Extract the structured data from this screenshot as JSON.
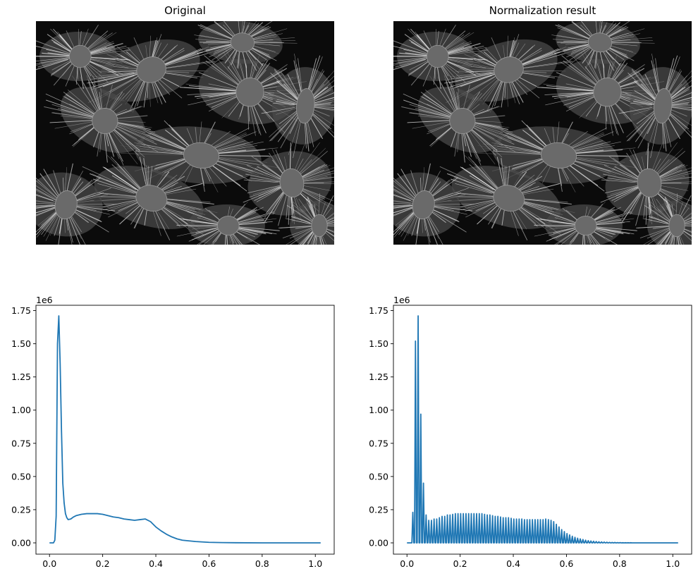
{
  "panels": {
    "original_title": "Original",
    "normalized_title": "Normalization result"
  },
  "images": {
    "original": {
      "kind": "grayscale fluorescence microscopy, cells with filament network"
    },
    "normalized": {
      "kind": "grayscale fluorescence microscopy, cells with filament network"
    }
  },
  "colors": {
    "line": "#1f77b4",
    "axes": "#000000",
    "image_background": "#0b0b0b"
  },
  "chart_data": [
    {
      "type": "line",
      "title": "",
      "xlabel": "",
      "ylabel": "",
      "y_offset_text": "1e6",
      "xlim": [
        -0.051,
        1.071
      ],
      "ylim": [
        -0.085,
        1.79
      ],
      "x_ticks": [
        0.0,
        0.2,
        0.4,
        0.6,
        0.8,
        1.0
      ],
      "x_tick_labels": [
        "0.0",
        "0.2",
        "0.4",
        "0.6",
        "0.8",
        "1.0"
      ],
      "y_ticks": [
        0.0,
        0.25,
        0.5,
        0.75,
        1.0,
        1.25,
        1.5,
        1.75
      ],
      "y_tick_labels": [
        "0.00",
        "0.25",
        "0.50",
        "0.75",
        "1.00",
        "1.25",
        "1.50",
        "1.75"
      ],
      "grid": false,
      "legend": "none",
      "series": [
        {
          "x": [
            0.0,
            0.015,
            0.02,
            0.025,
            0.03,
            0.035,
            0.04,
            0.045,
            0.05,
            0.055,
            0.06,
            0.065,
            0.07,
            0.08,
            0.09,
            0.1,
            0.12,
            0.14,
            0.16,
            0.18,
            0.2,
            0.22,
            0.24,
            0.26,
            0.28,
            0.3,
            0.32,
            0.34,
            0.36,
            0.38,
            0.4,
            0.42,
            0.44,
            0.46,
            0.48,
            0.5,
            0.55,
            0.6,
            0.65,
            0.7,
            0.8,
            0.9,
            1.0,
            1.02
          ],
          "y": [
            0.0,
            0.0,
            0.02,
            0.2,
            1.5,
            1.71,
            1.35,
            0.85,
            0.45,
            0.3,
            0.22,
            0.19,
            0.175,
            0.18,
            0.195,
            0.205,
            0.215,
            0.22,
            0.22,
            0.22,
            0.215,
            0.205,
            0.195,
            0.19,
            0.18,
            0.175,
            0.17,
            0.175,
            0.18,
            0.16,
            0.12,
            0.09,
            0.065,
            0.045,
            0.03,
            0.02,
            0.01,
            0.004,
            0.002,
            0.001,
            0.0,
            0.0,
            0.0,
            0.0
          ]
        }
      ]
    },
    {
      "type": "line",
      "title": "",
      "xlabel": "",
      "ylabel": "",
      "y_offset_text": "1e6",
      "xlim": [
        -0.051,
        1.071
      ],
      "ylim": [
        -0.085,
        1.79
      ],
      "x_ticks": [
        0.0,
        0.2,
        0.4,
        0.6,
        0.8,
        1.0
      ],
      "x_tick_labels": [
        "0.0",
        "0.2",
        "0.4",
        "0.6",
        "0.8",
        "1.0"
      ],
      "y_ticks": [
        0.0,
        0.25,
        0.5,
        0.75,
        1.0,
        1.25,
        1.5,
        1.75
      ],
      "y_tick_labels": [
        "0.00",
        "0.25",
        "0.50",
        "0.75",
        "1.00",
        "1.25",
        "1.50",
        "1.75"
      ],
      "grid": false,
      "legend": "none",
      "series": [
        {
          "spikes_x": [
            0.022,
            0.032,
            0.042,
            0.052,
            0.062,
            0.072,
            0.082,
            0.092,
            0.102,
            0.112,
            0.122,
            0.132,
            0.142,
            0.152,
            0.162,
            0.172,
            0.182,
            0.192,
            0.202,
            0.212,
            0.222,
            0.232,
            0.242,
            0.252,
            0.262,
            0.272,
            0.282,
            0.292,
            0.302,
            0.312,
            0.322,
            0.332,
            0.342,
            0.352,
            0.362,
            0.372,
            0.382,
            0.392,
            0.402,
            0.412,
            0.422,
            0.432,
            0.442,
            0.452,
            0.462,
            0.472,
            0.482,
            0.492,
            0.502,
            0.512,
            0.522,
            0.532,
            0.542,
            0.552,
            0.562,
            0.572,
            0.582,
            0.592,
            0.602,
            0.612,
            0.622,
            0.632,
            0.642,
            0.652,
            0.662,
            0.672,
            0.682,
            0.692,
            0.702,
            0.712,
            0.722,
            0.732,
            0.742,
            0.752,
            0.762,
            0.772,
            0.782,
            0.792,
            0.802,
            0.812,
            0.822,
            0.832,
            0.842,
            0.852,
            0.862,
            0.872,
            0.882
          ],
          "spikes_y": [
            0.23,
            1.52,
            1.71,
            0.97,
            0.45,
            0.21,
            0.17,
            0.17,
            0.18,
            0.18,
            0.19,
            0.2,
            0.2,
            0.21,
            0.21,
            0.215,
            0.22,
            0.22,
            0.22,
            0.22,
            0.22,
            0.22,
            0.22,
            0.22,
            0.22,
            0.22,
            0.22,
            0.215,
            0.21,
            0.21,
            0.205,
            0.2,
            0.2,
            0.195,
            0.19,
            0.19,
            0.19,
            0.185,
            0.18,
            0.18,
            0.18,
            0.18,
            0.175,
            0.175,
            0.175,
            0.175,
            0.175,
            0.175,
            0.175,
            0.175,
            0.18,
            0.175,
            0.17,
            0.16,
            0.14,
            0.12,
            0.1,
            0.085,
            0.07,
            0.06,
            0.05,
            0.042,
            0.035,
            0.03,
            0.025,
            0.02,
            0.017,
            0.014,
            0.012,
            0.01,
            0.008,
            0.007,
            0.006,
            0.005,
            0.004,
            0.003,
            0.003,
            0.002,
            0.002,
            0.001,
            0.001,
            0.001,
            0.001,
            0.0,
            0.0,
            0.0,
            0.0
          ],
          "x_end": 1.02
        }
      ]
    }
  ]
}
